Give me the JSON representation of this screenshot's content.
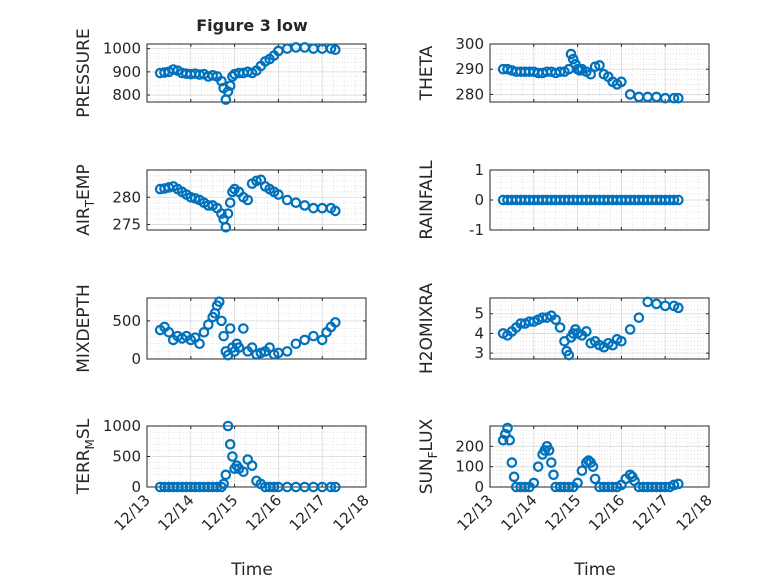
{
  "figure": {
    "title": "Figure 3 low",
    "xlabel_left": "Time",
    "xlabel_right": "Time",
    "xticklabels": [
      "12/13",
      "12/14",
      "12/15",
      "12/16",
      "12/17",
      "12/18"
    ]
  },
  "chart_data": [
    {
      "type": "scatter",
      "name": "pressure",
      "ylabel": "PRESSURE",
      "ylim": [
        770,
        1020
      ],
      "yticks": [
        800,
        900,
        1000
      ],
      "yticklabels": [
        "800",
        "900",
        "1000"
      ],
      "x": [
        13.3,
        13.4,
        13.5,
        13.6,
        13.7,
        13.8,
        13.9,
        14.0,
        14.1,
        14.2,
        14.3,
        14.4,
        14.5,
        14.6,
        14.7,
        14.75,
        14.8,
        14.85,
        14.9,
        14.95,
        15.0,
        15.1,
        15.2,
        15.3,
        15.4,
        15.5,
        15.6,
        15.7,
        15.8,
        15.9,
        16.0,
        16.2,
        16.4,
        16.6,
        16.8,
        17.0,
        17.2,
        17.3
      ],
      "y": [
        895,
        897,
        900,
        910,
        905,
        895,
        892,
        890,
        892,
        888,
        890,
        880,
        885,
        880,
        860,
        830,
        780,
        815,
        840,
        880,
        890,
        895,
        895,
        900,
        895,
        905,
        925,
        945,
        955,
        970,
        990,
        1000,
        1005,
        1005,
        1000,
        1000,
        1000,
        995
      ],
      "color": "#0072bd"
    },
    {
      "type": "scatter",
      "name": "theta",
      "ylabel": "THETA",
      "ylim": [
        277,
        300
      ],
      "yticks": [
        280,
        290,
        300
      ],
      "yticklabels": [
        "280",
        "290",
        "300"
      ],
      "x": [
        13.3,
        13.4,
        13.5,
        13.6,
        13.7,
        13.8,
        13.9,
        14.0,
        14.1,
        14.2,
        14.3,
        14.4,
        14.5,
        14.6,
        14.7,
        14.8,
        14.85,
        14.9,
        14.95,
        15.0,
        15.05,
        15.1,
        15.2,
        15.3,
        15.4,
        15.5,
        15.6,
        15.7,
        15.8,
        15.9,
        16.0,
        16.2,
        16.4,
        16.6,
        16.8,
        17.0,
        17.2,
        17.3
      ],
      "y": [
        290,
        290,
        289.5,
        289,
        289,
        289,
        289,
        289,
        288.5,
        288.5,
        289,
        289,
        288.5,
        289,
        289,
        290,
        296,
        294,
        292,
        290,
        289.5,
        290,
        289,
        288,
        291,
        291.5,
        288,
        287,
        285,
        284,
        285,
        280,
        279,
        279,
        279,
        278.5,
        278.5,
        278.5
      ],
      "color": "#0072bd"
    },
    {
      "type": "scatter",
      "name": "air_temp",
      "ylabel": "AIR_TEMP",
      "ylim": [
        274,
        285
      ],
      "yticks": [
        275,
        280
      ],
      "yticklabels": [
        "275",
        "280"
      ],
      "x": [
        13.3,
        13.4,
        13.5,
        13.6,
        13.7,
        13.8,
        13.9,
        14.0,
        14.1,
        14.2,
        14.3,
        14.4,
        14.5,
        14.6,
        14.7,
        14.75,
        14.8,
        14.85,
        14.9,
        14.95,
        15.0,
        15.1,
        15.2,
        15.3,
        15.4,
        15.5,
        15.6,
        15.7,
        15.8,
        15.9,
        16.0,
        16.2,
        16.4,
        16.6,
        16.8,
        17.0,
        17.2,
        17.3
      ],
      "y": [
        281.5,
        281.6,
        281.8,
        282,
        281.5,
        281,
        280.5,
        280,
        279.8,
        279.5,
        279,
        278.5,
        278.5,
        278,
        277,
        276,
        274.5,
        277,
        279,
        281,
        281.5,
        281,
        280,
        279.5,
        282.5,
        283,
        283.2,
        282,
        281.5,
        281,
        280.5,
        279.5,
        279,
        278.5,
        278,
        278,
        278,
        277.5
      ],
      "color": "#0072bd"
    },
    {
      "type": "scatter",
      "name": "rainfall",
      "ylabel": "RAINFALL",
      "ylim": [
        -1,
        1
      ],
      "yticks": [
        -1,
        0,
        1
      ],
      "yticklabels": [
        "-1",
        "0",
        "1"
      ],
      "x": [
        13.3,
        13.4,
        13.5,
        13.6,
        13.7,
        13.8,
        13.9,
        14.0,
        14.1,
        14.2,
        14.3,
        14.4,
        14.5,
        14.6,
        14.7,
        14.8,
        14.9,
        15.0,
        15.1,
        15.2,
        15.3,
        15.4,
        15.5,
        15.6,
        15.7,
        15.8,
        15.9,
        16.0,
        16.1,
        16.2,
        16.3,
        16.4,
        16.5,
        16.6,
        16.7,
        16.8,
        16.9,
        17.0,
        17.1,
        17.2,
        17.3
      ],
      "y": [
        0,
        0,
        0,
        0,
        0,
        0,
        0,
        0,
        0,
        0,
        0,
        0,
        0,
        0,
        0,
        0,
        0,
        0,
        0,
        0,
        0,
        0,
        0,
        0,
        0,
        0,
        0,
        0,
        0,
        0,
        0,
        0,
        0,
        0,
        0,
        0,
        0,
        0,
        0,
        0,
        0
      ],
      "color": "#0072bd"
    },
    {
      "type": "scatter",
      "name": "mixdepth",
      "ylabel": "MIXDEPTH",
      "ylim": [
        0,
        800
      ],
      "yticks": [
        0,
        500
      ],
      "yticklabels": [
        "0",
        "500"
      ],
      "x": [
        13.3,
        13.4,
        13.5,
        13.6,
        13.7,
        13.8,
        13.9,
        14.0,
        14.1,
        14.2,
        14.3,
        14.4,
        14.5,
        14.55,
        14.6,
        14.65,
        14.7,
        14.75,
        14.8,
        14.85,
        14.9,
        14.95,
        15.0,
        15.05,
        15.1,
        15.2,
        15.3,
        15.4,
        15.5,
        15.6,
        15.7,
        15.8,
        15.9,
        16.0,
        16.2,
        16.4,
        16.6,
        16.8,
        17.0,
        17.1,
        17.2,
        17.3
      ],
      "y": [
        380,
        420,
        350,
        250,
        300,
        270,
        300,
        250,
        280,
        200,
        350,
        450,
        550,
        600,
        700,
        750,
        500,
        300,
        100,
        50,
        400,
        150,
        100,
        200,
        150,
        400,
        100,
        150,
        60,
        80,
        100,
        150,
        60,
        80,
        100,
        200,
        250,
        300,
        250,
        350,
        420,
        480
      ],
      "color": "#0072bd"
    },
    {
      "type": "scatter",
      "name": "h2omixra",
      "ylabel": "H2OMIXRA",
      "ylim": [
        2.7,
        5.8
      ],
      "yticks": [
        3,
        4,
        5
      ],
      "yticklabels": [
        "3",
        "4",
        "5"
      ],
      "x": [
        13.3,
        13.4,
        13.5,
        13.6,
        13.7,
        13.8,
        13.9,
        14.0,
        14.1,
        14.2,
        14.3,
        14.4,
        14.5,
        14.6,
        14.7,
        14.75,
        14.8,
        14.85,
        14.9,
        14.95,
        15.0,
        15.1,
        15.2,
        15.3,
        15.4,
        15.5,
        15.6,
        15.7,
        15.8,
        15.9,
        16.0,
        16.2,
        16.4,
        16.6,
        16.8,
        17.0,
        17.2,
        17.3
      ],
      "y": [
        4.0,
        3.9,
        4.1,
        4.3,
        4.5,
        4.5,
        4.6,
        4.6,
        4.7,
        4.8,
        4.8,
        4.9,
        4.7,
        4.3,
        3.6,
        3.1,
        2.9,
        3.8,
        4.0,
        4.2,
        4.0,
        3.9,
        4.1,
        3.5,
        3.6,
        3.4,
        3.3,
        3.5,
        3.4,
        3.7,
        3.6,
        4.2,
        4.8,
        5.6,
        5.5,
        5.4,
        5.4,
        5.3
      ],
      "color": "#0072bd"
    },
    {
      "type": "scatter",
      "name": "terr_msl",
      "ylabel": "TERR_MSL",
      "ylim": [
        0,
        1000
      ],
      "yticks": [
        0,
        500,
        1000
      ],
      "yticklabels": [
        "0",
        "500",
        "1000"
      ],
      "x": [
        13.3,
        13.4,
        13.5,
        13.6,
        13.7,
        13.8,
        13.9,
        14.0,
        14.1,
        14.2,
        14.3,
        14.4,
        14.5,
        14.6,
        14.7,
        14.75,
        14.8,
        14.85,
        14.9,
        14.95,
        15.0,
        15.05,
        15.1,
        15.2,
        15.3,
        15.4,
        15.5,
        15.6,
        15.7,
        15.8,
        15.9,
        16.0,
        16.2,
        16.4,
        16.6,
        16.8,
        17.0,
        17.2,
        17.3
      ],
      "y": [
        0,
        0,
        0,
        0,
        0,
        0,
        0,
        0,
        0,
        0,
        0,
        0,
        0,
        0,
        0,
        50,
        200,
        1000,
        700,
        500,
        300,
        350,
        300,
        250,
        450,
        350,
        100,
        50,
        0,
        0,
        0,
        0,
        0,
        0,
        0,
        0,
        0,
        0,
        0
      ],
      "color": "#0072bd"
    },
    {
      "type": "scatter",
      "name": "sun_flux",
      "ylabel": "SUN_FLUX",
      "ylim": [
        0,
        300
      ],
      "yticks": [
        0,
        100,
        200
      ],
      "yticklabels": [
        "0",
        "100",
        "200"
      ],
      "x": [
        13.3,
        13.35,
        13.4,
        13.45,
        13.5,
        13.55,
        13.6,
        13.7,
        13.8,
        13.9,
        14.0,
        14.1,
        14.2,
        14.25,
        14.3,
        14.35,
        14.4,
        14.45,
        14.5,
        14.6,
        14.7,
        14.8,
        14.9,
        15.0,
        15.1,
        15.2,
        15.25,
        15.3,
        15.35,
        15.4,
        15.5,
        15.6,
        15.7,
        15.8,
        15.9,
        16.0,
        16.1,
        16.2,
        16.25,
        16.3,
        16.4,
        16.5,
        16.6,
        16.7,
        16.8,
        16.9,
        17.0,
        17.1,
        17.2,
        17.3
      ],
      "y": [
        230,
        260,
        290,
        230,
        120,
        50,
        0,
        0,
        0,
        0,
        20,
        100,
        160,
        180,
        200,
        180,
        120,
        60,
        0,
        0,
        0,
        0,
        0,
        20,
        80,
        120,
        130,
        120,
        100,
        40,
        0,
        0,
        0,
        0,
        0,
        10,
        40,
        60,
        50,
        30,
        0,
        0,
        0,
        0,
        0,
        0,
        0,
        0,
        10,
        15
      ],
      "color": "#0072bd"
    }
  ]
}
